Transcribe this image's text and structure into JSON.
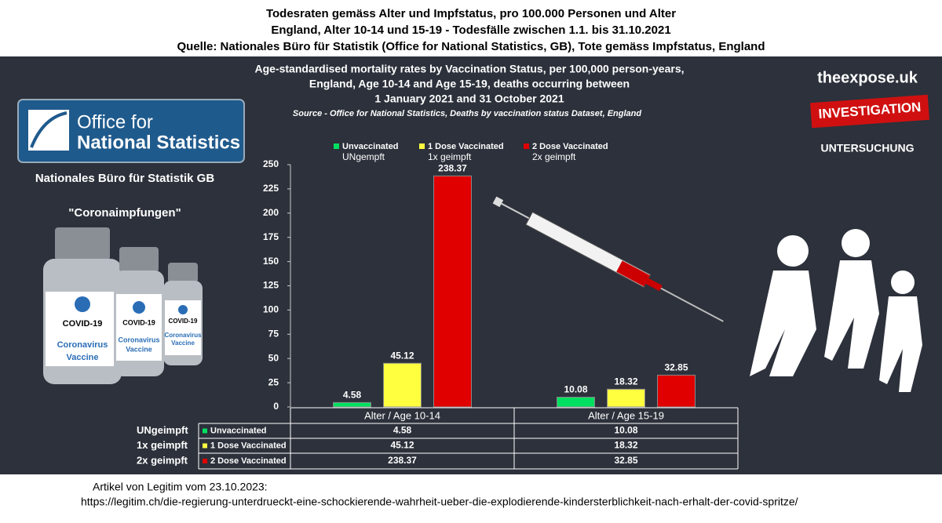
{
  "header": {
    "lines": [
      "Todesraten gemäss Alter und Impfstatus, pro 100.000 Personen und Alter",
      "England, Alter 10-14 und 15-19 - Todesfälle zwischen 1.1. bis 31.10.2021",
      "Quelle: Nationales Büro für Statistik (Office for National Statistics, GB), Tote gemäss Impfstatus, England"
    ]
  },
  "chart_data": {
    "type": "bar",
    "title": [
      "Age-standardised mortality rates by Vaccination Status, per 100,000 person-years,",
      "England, Age 10-14 and Age 15-19, deaths occurring between",
      "1 January 2021 and 31 October 2021"
    ],
    "subtitle": "Source - Office for National Statistics, Deaths by vaccination status Dataset, England",
    "categories": [
      "Alter / Age 10-14",
      "Alter / Age 15-19"
    ],
    "series": [
      {
        "name": "Unvaccinated",
        "name_de": "UNgempft",
        "color": "#00e060",
        "values": [
          4.58,
          10.08
        ]
      },
      {
        "name": "1 Dose Vaccinated",
        "name_de": "1x geimpft",
        "color": "#ffff40",
        "values": [
          45.12,
          18.32
        ]
      },
      {
        "name": "2 Dose Vaccinated",
        "name_de": "2x geimpft",
        "color": "#e00000",
        "values": [
          238.37,
          32.85
        ]
      }
    ],
    "ylim": [
      0,
      250
    ],
    "yticks": [
      0,
      25,
      50,
      75,
      100,
      125,
      150,
      175,
      200,
      225,
      250
    ],
    "grid": false
  },
  "table": {
    "row_labels_de": [
      "UNgeimpft",
      "1x geimpft",
      "2x geimpft"
    ]
  },
  "ons": {
    "logo": [
      "Office for",
      "National Statistics"
    ],
    "caption": "Nationales Büro für Statistik GB"
  },
  "vaccine": {
    "caption": "\"Coronaimpfungen\"",
    "label": "COVID-19",
    "name": [
      "Coronavirus",
      "Vaccine"
    ]
  },
  "brand": {
    "site": "theexpose.uk",
    "stamp": "INVESTIGATION",
    "stamp_de": "UNTERSUCHUNG"
  },
  "footer": {
    "lines": [
      "Artikel von Legitim vom 23.10.2023:",
      "https://legitim.ch/die-regierung-unterdrueckt-eine-schockierende-wahrheit-ueber-die-explodierende-kindersterblichkeit-nach-erhalt-der-covid-spritze/"
    ]
  }
}
